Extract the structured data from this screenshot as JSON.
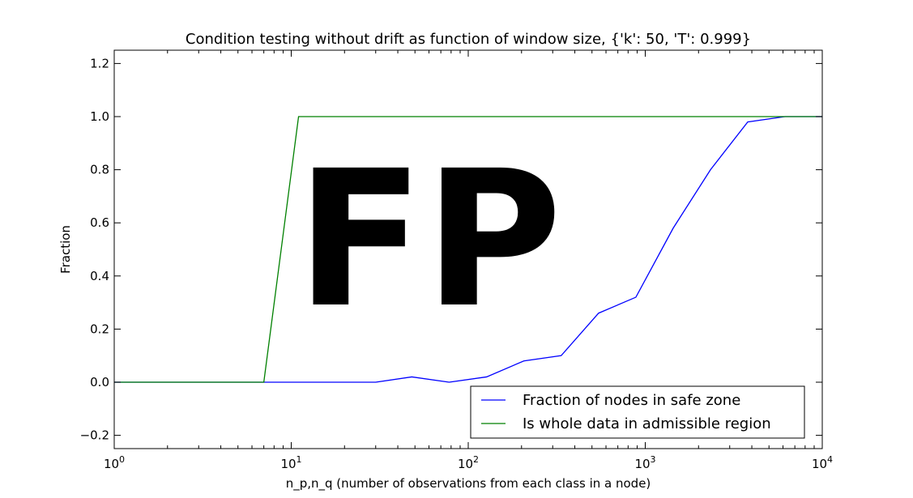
{
  "chart_data": {
    "type": "line",
    "title": "Condition testing without drift as function of window size, {'k': 50, 'T': 0.999}",
    "xlabel": "n_p,n_q (number of observations from each class in a node)",
    "ylabel": "Fraction",
    "xscale": "log",
    "xlim": [
      1,
      10000
    ],
    "ylim": [
      -0.25,
      1.25
    ],
    "x_ticks": [
      {
        "value": 1,
        "base": "10",
        "exp": "0"
      },
      {
        "value": 10,
        "base": "10",
        "exp": "1"
      },
      {
        "value": 100,
        "base": "10",
        "exp": "2"
      },
      {
        "value": 1000,
        "base": "10",
        "exp": "3"
      },
      {
        "value": 10000,
        "base": "10",
        "exp": "4"
      }
    ],
    "y_ticks": [
      {
        "value": -0.2,
        "label": "−0.2"
      },
      {
        "value": 0.0,
        "label": "0.0"
      },
      {
        "value": 0.2,
        "label": "0.2"
      },
      {
        "value": 0.4,
        "label": "0.4"
      },
      {
        "value": 0.6,
        "label": "0.6"
      },
      {
        "value": 0.8,
        "label": "0.8"
      },
      {
        "value": 1.0,
        "label": "1.0"
      },
      {
        "value": 1.2,
        "label": "1.2"
      }
    ],
    "grid": false,
    "legend_position": "lower-right",
    "overlay_text": "FP",
    "series": [
      {
        "name": "Fraction of nodes in safe zone",
        "color": "#0000ff",
        "x": [
          1,
          2,
          3,
          5,
          7,
          11,
          18,
          30,
          48,
          78,
          127,
          206,
          335,
          545,
          885,
          1438,
          2336,
          3793,
          6158,
          10000
        ],
        "y": [
          0,
          0,
          0,
          0,
          0,
          0,
          0,
          0,
          0.02,
          0,
          0.02,
          0.08,
          0.1,
          0.26,
          0.32,
          0.58,
          0.8,
          0.98,
          1.0,
          1.0
        ]
      },
      {
        "name": "Is whole data in admissible region",
        "color": "#008000",
        "x": [
          1,
          2,
          3,
          5,
          7,
          11,
          18,
          30,
          48,
          78,
          127,
          206,
          335,
          545,
          885,
          1438,
          2336,
          3793,
          6158,
          10000
        ],
        "y": [
          0,
          0,
          0,
          0,
          0,
          1.0,
          1.0,
          1.0,
          1.0,
          1.0,
          1.0,
          1.0,
          1.0,
          1.0,
          1.0,
          1.0,
          1.0,
          1.0,
          1.0,
          1.0
        ]
      }
    ]
  }
}
